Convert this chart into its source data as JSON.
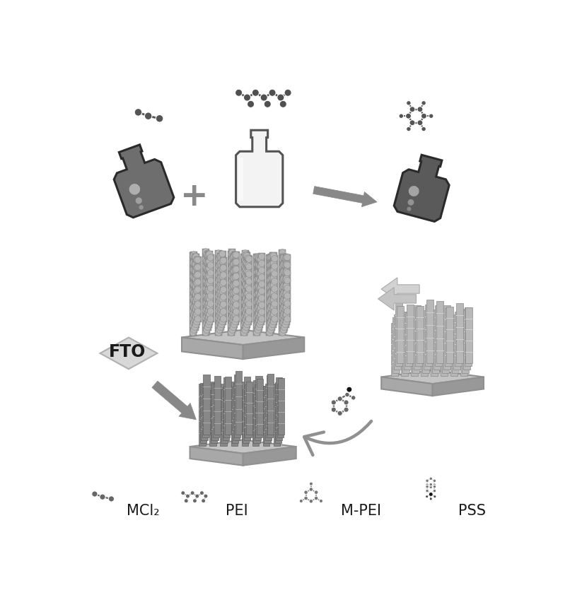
{
  "bg_color": "#ffffff",
  "labels": {
    "MCl2": "MCl₂",
    "PEI": "PEI",
    "M-PEI": "M-PEI",
    "PSS": "PSS",
    "FTO": "FTO"
  },
  "label_fontsize": 15,
  "fto_fontsize": 17,
  "colors": {
    "bottle_dark_fill": "#686868",
    "bottle_dark_edge": "#2a2a2a",
    "bottle_light_fill": "#f2f2f2",
    "bottle_light_edge": "#555555",
    "rod_light": "#b8b8b8",
    "rod_medium": "#909090",
    "rod_dark": "#707070",
    "platform_top": "#c0c0c0",
    "platform_left": "#a8a8a8",
    "platform_right": "#989898",
    "arrow_dark": "#888888",
    "arrow_light": "#c8c8c8",
    "fto_fill": "#d4d4d4",
    "fto_edge": "#aaaaaa",
    "molecule_gray": "#666666",
    "molecule_dark": "#222222",
    "plus_color": "#888888"
  }
}
